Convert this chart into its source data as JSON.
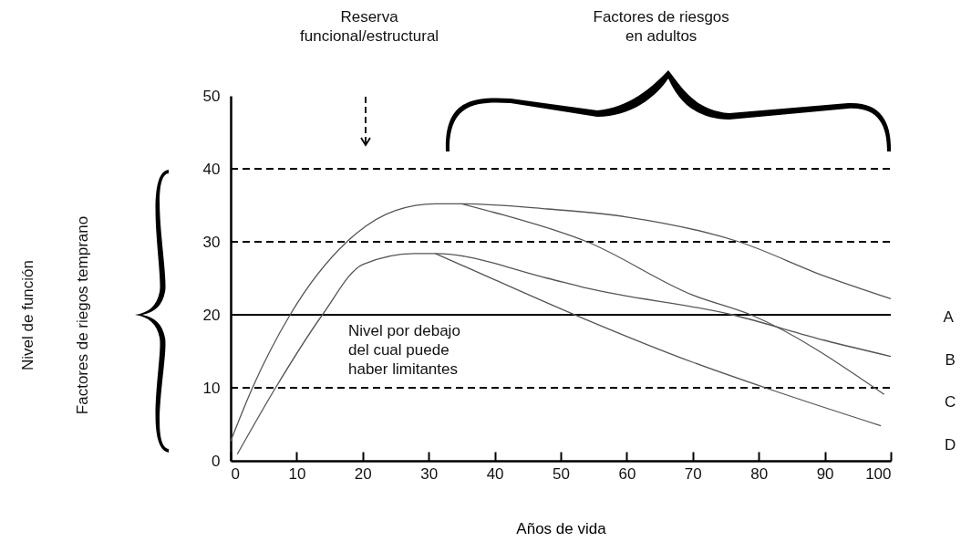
{
  "chart_data": {
    "type": "line",
    "xlabel": "Años de vida",
    "xlim": [
      0,
      100
    ],
    "ylim": [
      0,
      50
    ],
    "xticks": [
      0,
      10,
      20,
      30,
      40,
      50,
      60,
      70,
      80,
      90,
      100
    ],
    "yticks": [
      0,
      10,
      20,
      30,
      40,
      50
    ],
    "series": [
      {
        "color": "#555555",
        "x": [
          0,
          3.3,
          9,
          17.6,
          25,
          31,
          35,
          48,
          60,
          77,
          90,
          100
        ],
        "values": [
          2.7,
          10,
          20,
          30,
          34.3,
          35.2,
          35.2,
          34.5,
          33.4,
          30,
          25.3,
          22.2
        ]
      },
      {
        "color": "#555555",
        "x": [
          35,
          40,
          54,
          70,
          78.8,
          99
        ],
        "values": [
          35.2,
          34,
          30,
          22.7,
          20,
          9.1
        ]
      },
      {
        "color": "#555555",
        "x": [
          1,
          6.8,
          13.9,
          20,
          27.8,
          31,
          48,
          53.7,
          76,
          90,
          100
        ],
        "values": [
          0.9,
          10,
          20,
          26.9,
          28.4,
          28.4,
          25,
          23.7,
          20,
          16.5,
          14.3
        ]
      },
      {
        "color": "#555555",
        "x": [
          31,
          40,
          53.7,
          70,
          81,
          98.5
        ],
        "values": [
          28.4,
          24.8,
          19.4,
          13.5,
          10,
          4.8
        ]
      }
    ],
    "ref_lines": [
      {
        "axis": "y",
        "value": 10,
        "line_style": "dashed"
      },
      {
        "axis": "y",
        "value": 20,
        "line_style": "solid"
      },
      {
        "axis": "y",
        "value": 30,
        "line_style": "dashed"
      },
      {
        "axis": "y",
        "value": 40,
        "line_style": "dashed"
      }
    ],
    "annotations": [
      "Nivel de función",
      "Reserva funcional/estructural",
      "Factores de riesgos en adultos",
      "Nivel por debajo del cual puede haber limitantes",
      "Factores de riegos temprano",
      "A",
      "B",
      "C",
      "D"
    ]
  }
}
